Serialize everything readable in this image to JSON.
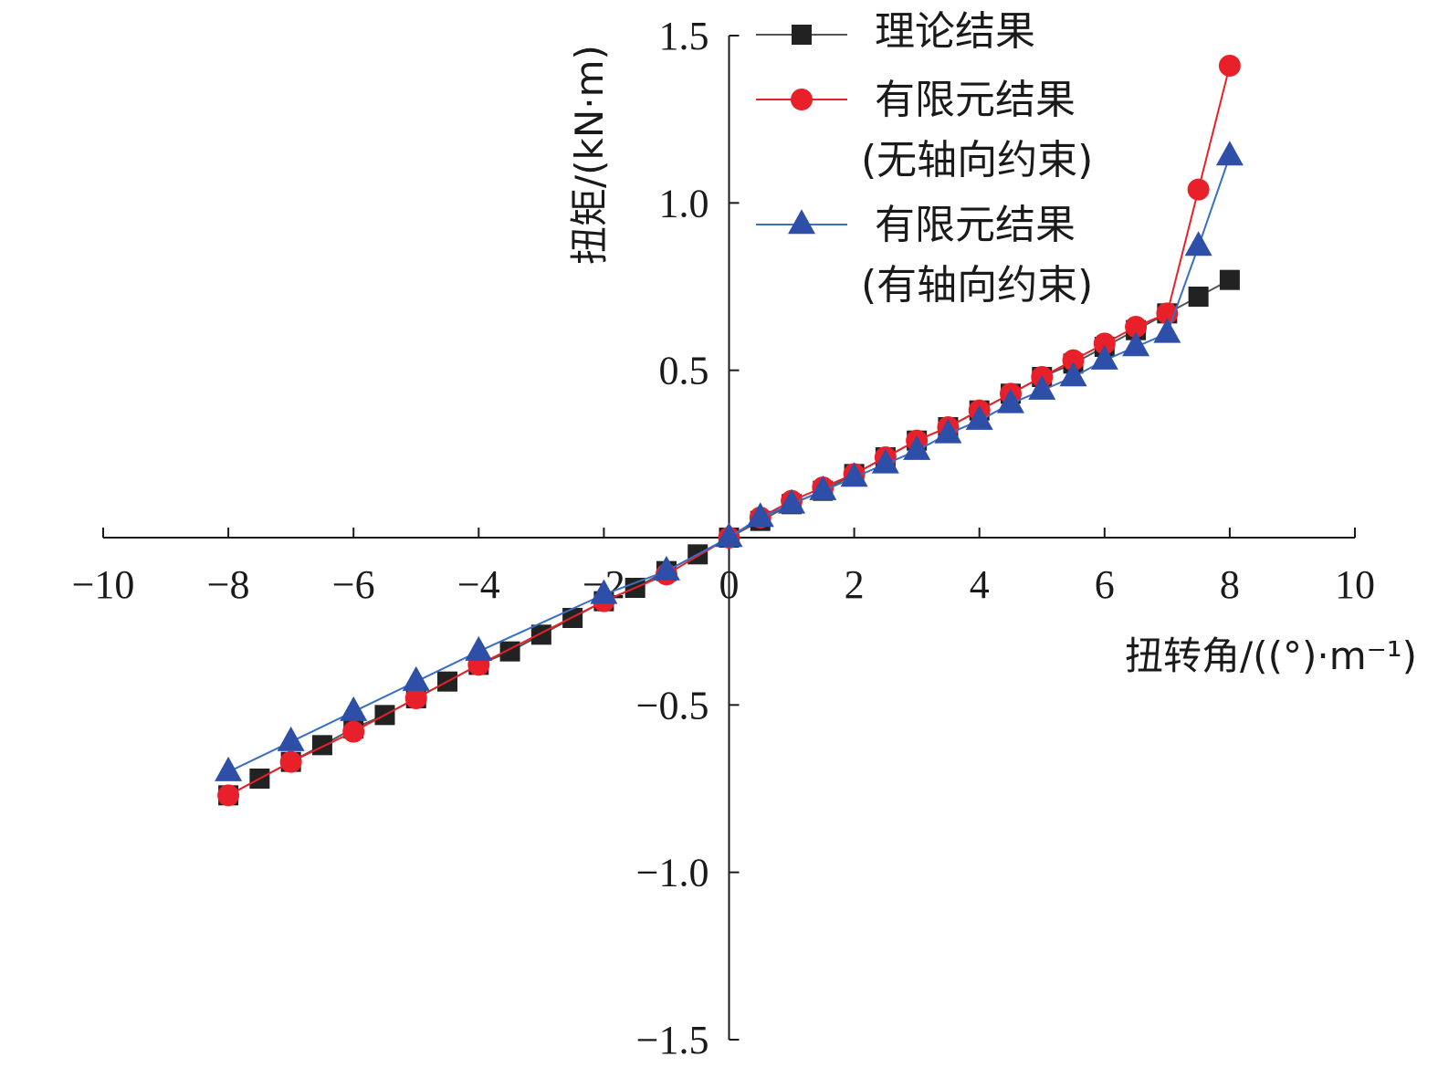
{
  "chart_data": {
    "type": "line",
    "xlabel": "扭转角/((°)·m⁻¹)",
    "ylabel": "扭矩/(kN·m)",
    "xlim": [
      -10,
      10
    ],
    "ylim": [
      -1.5,
      1.5
    ],
    "x_ticks": [
      -10,
      -8,
      -6,
      -4,
      -2,
      0,
      2,
      4,
      6,
      8,
      10
    ],
    "x_tick_labels": [
      "−10",
      "−8",
      "−6",
      "−4",
      "−2",
      "0",
      "2",
      "4",
      "6",
      "8",
      "10"
    ],
    "y_ticks": [
      1.5,
      1.0,
      0.5,
      -0.5,
      -1.0,
      -1.5
    ],
    "y_tick_labels": [
      "1.5",
      "1.0",
      "0.5",
      "−0.5",
      "−1.0",
      "−1.5"
    ],
    "legend_position": "top-right",
    "series": [
      {
        "name": "理论结果",
        "legend_lines": [
          "理论结果"
        ],
        "marker": "square",
        "color": "#222222",
        "line_color": "#555555",
        "x": [
          -8,
          -7.5,
          -7,
          -6.5,
          -6,
          -5.5,
          -5,
          -4.5,
          -4,
          -3.5,
          -3,
          -2.5,
          -2,
          -1.5,
          -1,
          -0.5,
          0,
          0.5,
          1,
          1.5,
          2,
          2.5,
          3,
          3.5,
          4,
          4.5,
          5,
          5.5,
          6,
          6.5,
          7,
          7.5,
          8
        ],
        "y": [
          -0.77,
          -0.72,
          -0.67,
          -0.62,
          -0.57,
          -0.53,
          -0.48,
          -0.43,
          -0.38,
          -0.34,
          -0.29,
          -0.24,
          -0.19,
          -0.15,
          -0.1,
          -0.05,
          0,
          0.05,
          0.1,
          0.14,
          0.19,
          0.24,
          0.29,
          0.33,
          0.38,
          0.43,
          0.48,
          0.52,
          0.57,
          0.62,
          0.67,
          0.72,
          0.77
        ]
      },
      {
        "name": "有限元结果(无轴向约束)",
        "legend_lines": [
          "有限元结果",
          "(无轴向约束)"
        ],
        "marker": "circle",
        "color": "#e8202a",
        "line_color": "#e8202a",
        "x": [
          -8,
          -7,
          -6,
          -5,
          -4,
          -2,
          -1,
          0,
          0.5,
          1,
          1.5,
          2,
          2.5,
          3,
          3.5,
          4,
          4.5,
          5,
          5.5,
          6,
          6.5,
          7,
          7.5,
          8
        ],
        "y": [
          -0.77,
          -0.67,
          -0.58,
          -0.48,
          -0.38,
          -0.19,
          -0.11,
          0,
          0.06,
          0.11,
          0.15,
          0.19,
          0.24,
          0.29,
          0.33,
          0.38,
          0.43,
          0.48,
          0.53,
          0.58,
          0.63,
          0.67,
          1.04,
          1.41
        ]
      },
      {
        "name": "有限元结果(有轴向约束)",
        "legend_lines": [
          "有限元结果",
          "(有轴向约束)"
        ],
        "marker": "triangle",
        "color": "#2e4fa8",
        "line_color": "#3a6fc4",
        "x": [
          -8,
          -7,
          -6,
          -5,
          -4,
          -2,
          -1,
          0,
          0.5,
          1,
          1.5,
          2,
          2.5,
          3,
          3.5,
          4,
          4.5,
          5,
          5.5,
          6,
          6.5,
          7,
          7.5,
          8
        ],
        "y": [
          -0.7,
          -0.61,
          -0.52,
          -0.43,
          -0.34,
          -0.17,
          -0.1,
          0,
          0.06,
          0.1,
          0.14,
          0.18,
          0.22,
          0.26,
          0.31,
          0.35,
          0.4,
          0.44,
          0.48,
          0.53,
          0.57,
          0.61,
          0.87,
          1.14
        ]
      }
    ]
  }
}
